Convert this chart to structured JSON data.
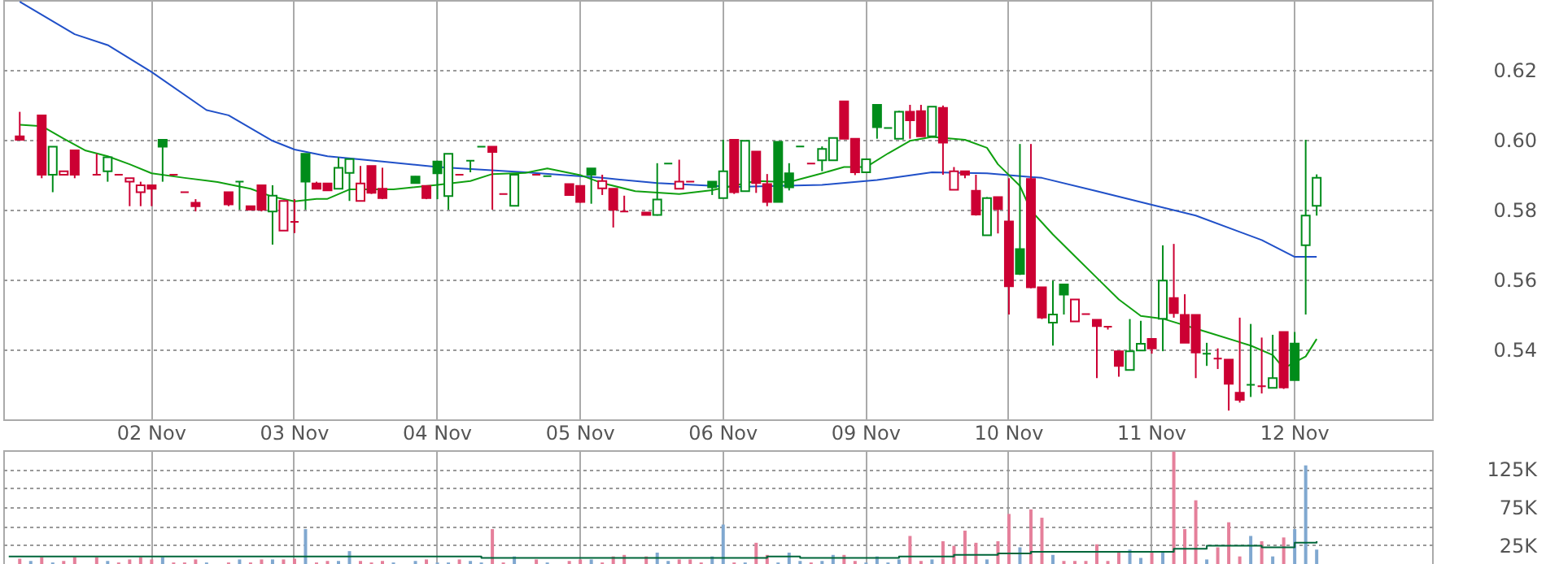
{
  "chart_data": [
    {
      "type": "candlestick",
      "categories": [
        null,
        null,
        null,
        null,
        null,
        null,
        null,
        null,
        null,
        null,
        null,
        null,
        null,
        "02 Nov",
        null,
        null,
        null,
        null,
        null,
        null,
        null,
        null,
        null,
        null,
        null,
        null,
        "03 Nov",
        null,
        null,
        null,
        null,
        null,
        null,
        null,
        null,
        null,
        null,
        null,
        null,
        "04 Nov",
        null,
        null,
        null,
        null,
        null,
        null,
        null,
        null,
        null,
        null,
        null,
        null,
        "05 Nov",
        null,
        null,
        null,
        null,
        null,
        null,
        null,
        null,
        null,
        null,
        null,
        null,
        "06 Nov",
        null,
        null,
        null,
        null,
        null,
        null,
        null,
        null,
        null,
        null,
        null,
        null,
        "09 Nov",
        null,
        null,
        null,
        null,
        null,
        null,
        null,
        null,
        null,
        null,
        null,
        null,
        "10 Nov",
        null,
        null,
        null,
        null,
        null,
        null,
        null,
        null,
        null,
        null,
        null,
        null,
        "11 Nov",
        null,
        null,
        null,
        null,
        null,
        null,
        null,
        null,
        null,
        null,
        null,
        null,
        "12 Nov",
        null,
        null,
        null,
        null,
        null,
        null,
        null,
        null,
        null,
        null,
        null,
        null
      ],
      "ohlc": [
        null,
        [
          0.601,
          0.608,
          0.6,
          0.6
        ],
        null,
        [
          0.607,
          0.607,
          0.589,
          0.59
        ],
        [
          0.59,
          0.598,
          0.585,
          0.598
        ],
        [
          0.59,
          0.591,
          0.59,
          0.591
        ],
        [
          0.597,
          0.597,
          0.589,
          0.59
        ],
        null,
        [
          0.59,
          0.596,
          0.59,
          0.59
        ],
        [
          0.591,
          0.595,
          0.588,
          0.595
        ],
        [
          0.59,
          0.59,
          0.59,
          0.59
        ],
        [
          0.588,
          0.589,
          0.581,
          0.589
        ],
        [
          0.585,
          0.588,
          0.581,
          0.587
        ],
        [
          0.587,
          0.587,
          0.581,
          0.586
        ],
        [
          0.6,
          0.6,
          0.588,
          0.598
        ],
        [
          0.59,
          0.59,
          0.59,
          0.59
        ],
        [
          0.585,
          0.585,
          0.585,
          0.585
        ],
        [
          0.582,
          0.583,
          0.5795,
          0.581
        ],
        null,
        null,
        [
          0.585,
          0.585,
          0.581,
          0.5815
        ],
        [
          0.588,
          0.588,
          0.58,
          0.588
        ],
        [
          0.581,
          0.581,
          0.58,
          0.58
        ],
        [
          0.587,
          0.587,
          0.5795,
          0.58
        ],
        [
          0.5795,
          0.587,
          0.57,
          0.584
        ],
        [
          0.574,
          0.5825,
          0.574,
          0.5825
        ],
        [
          0.5765,
          0.583,
          0.5733,
          0.5765
        ],
        [
          0.596,
          0.596,
          0.58,
          0.588
        ],
        [
          0.5875,
          0.588,
          0.586,
          0.586
        ],
        [
          0.5875,
          0.5875,
          0.5855,
          0.5855
        ],
        [
          0.586,
          0.595,
          0.586,
          0.592
        ],
        [
          0.5905,
          0.5945,
          0.5825,
          0.5945
        ],
        [
          0.5825,
          0.5925,
          0.5825,
          0.5875
        ],
        [
          0.5925,
          0.5925,
          0.5845,
          0.5848
        ],
        [
          0.586,
          0.592,
          0.583,
          0.5833
        ],
        null,
        null,
        [
          0.5895,
          0.5896,
          0.5875,
          0.5876
        ],
        [
          0.5868,
          0.5868,
          0.583,
          0.5833
        ],
        [
          0.5938,
          0.594,
          0.583,
          0.5904
        ],
        [
          0.5839,
          0.596,
          0.58,
          0.596
        ],
        [
          0.59,
          0.59,
          0.59,
          0.59
        ],
        [
          0.594,
          0.594,
          0.5907,
          0.594
        ],
        [
          0.598,
          0.598,
          0.598,
          0.598
        ],
        [
          0.598,
          0.598,
          0.58,
          0.5965
        ],
        [
          0.5845,
          0.5845,
          0.5845,
          0.5845
        ],
        [
          0.5811,
          0.59,
          0.5811,
          0.59
        ],
        null,
        [
          0.59,
          0.59,
          0.59,
          0.59
        ],
        [
          0.5896,
          0.5896,
          0.5896,
          0.5896
        ],
        null,
        [
          0.5873,
          0.5873,
          0.5842,
          0.5842
        ],
        [
          0.5868,
          0.5868,
          0.582,
          0.5822
        ],
        [
          0.5918,
          0.5918,
          0.5817,
          0.59
        ],
        [
          0.5861,
          0.59,
          0.5842,
          0.5882
        ],
        [
          0.586,
          0.586,
          0.5749,
          0.58
        ],
        [
          0.5795,
          0.584,
          0.5795,
          0.5795
        ],
        null,
        [
          0.5792,
          0.5792,
          0.5785,
          0.5785
        ],
        [
          0.5785,
          0.5933,
          0.5783,
          0.5829
        ],
        [
          0.5932,
          0.5932,
          0.5932,
          0.5932
        ],
        [
          0.586,
          0.5943,
          0.586,
          0.588
        ],
        [
          0.588,
          0.588,
          0.588,
          0.588
        ],
        null,
        [
          0.588,
          0.588,
          0.5842,
          0.5864
        ],
        [
          0.5833,
          0.6,
          0.5833,
          0.591
        ],
        [
          0.6,
          0.6,
          0.5845,
          0.585
        ],
        [
          0.5853,
          0.5997,
          0.5853,
          0.5997
        ],
        [
          0.5966,
          0.5966,
          0.5848,
          0.5876
        ],
        [
          0.5873,
          0.5902,
          0.581,
          0.5822
        ],
        [
          0.5994,
          0.5994,
          0.5822,
          0.5822
        ],
        [
          0.5904,
          0.5933,
          0.5855,
          0.5864
        ],
        [
          0.5981,
          0.5981,
          0.5981,
          0.5981
        ],
        [
          0.5932,
          0.5932,
          0.5932,
          0.5932
        ],
        [
          0.5941,
          0.5981,
          0.591,
          0.5974
        ],
        [
          0.5941,
          0.6005,
          0.5941,
          0.6005
        ],
        [
          0.611,
          0.611,
          0.6003,
          0.6003
        ],
        [
          0.6003,
          0.6003,
          0.5899,
          0.5907
        ],
        [
          0.5907,
          0.5944,
          0.5907,
          0.5944
        ],
        [
          0.61,
          0.61,
          0.6003,
          0.6036
        ],
        [
          0.6034,
          0.6034,
          0.6034,
          0.6034
        ],
        [
          0.6003,
          0.6083,
          0.6003,
          0.608
        ],
        [
          0.608,
          0.61,
          0.6003,
          0.6056
        ],
        [
          0.6082,
          0.61,
          0.601,
          0.601
        ],
        [
          0.601,
          0.6095,
          0.601,
          0.6095
        ],
        [
          0.6091,
          0.6098,
          0.59,
          0.5992
        ],
        [
          0.5857,
          0.5922,
          0.5857,
          0.591
        ],
        [
          0.591,
          0.591,
          0.589,
          0.59
        ],
        [
          0.5854,
          0.59,
          0.5783,
          0.5786
        ],
        [
          0.5727,
          0.5836,
          0.5727,
          0.5833
        ],
        [
          0.5836,
          0.5836,
          0.5732,
          0.5802
        ],
        [
          0.5766,
          0.589,
          0.55,
          0.5581
        ],
        [
          0.5687,
          0.5988,
          0.5613,
          0.5616
        ],
        [
          0.5888,
          0.5988,
          0.5575,
          0.5578
        ],
        [
          0.5578,
          0.5578,
          0.5487,
          0.5491
        ],
        [
          0.5477,
          0.5597,
          0.5411,
          0.55
        ],
        [
          0.5586,
          0.5586,
          0.55,
          0.5557
        ],
        [
          0.548,
          0.5543,
          0.548,
          0.5543
        ],
        [
          0.5501,
          0.5501,
          0.5501,
          0.5501
        ],
        [
          0.5485,
          0.5485,
          0.5318,
          0.5467
        ],
        [
          0.5465,
          0.5465,
          0.5457,
          0.5465
        ],
        [
          0.5395,
          0.5395,
          0.5322,
          0.5353
        ],
        [
          0.5341,
          0.5487,
          0.5341,
          0.5395
        ],
        [
          0.5397,
          0.5482,
          0.5397,
          0.5416
        ],
        [
          0.543,
          0.543,
          0.5388,
          0.5403
        ],
        [
          0.5488,
          0.5698,
          0.5395,
          0.5597
        ],
        [
          0.5547,
          0.5702,
          0.5491,
          0.5504
        ],
        [
          0.5499,
          0.5558,
          0.5419,
          0.5419
        ],
        [
          0.5499,
          0.5499,
          0.5318,
          0.5391
        ],
        [
          0.5388,
          0.5419,
          0.5353,
          0.5388
        ],
        [
          0.5374,
          0.5403,
          0.5344,
          0.5374
        ],
        [
          0.5371,
          0.5371,
          0.5225,
          0.5302
        ],
        [
          0.5276,
          0.5491,
          0.5248,
          0.5256
        ],
        [
          0.5299,
          0.5473,
          0.5264,
          0.5299
        ],
        [
          0.5295,
          0.5434,
          0.5274,
          0.5295
        ],
        [
          0.529,
          0.5442,
          0.529,
          0.5318
        ],
        [
          0.545,
          0.545,
          0.5287,
          0.5291
        ],
        [
          0.5417,
          0.545,
          0.5312,
          0.5312
        ],
        [
          0.5698,
          0.6,
          0.55,
          0.5783
        ],
        [
          0.5811,
          0.5901,
          0.5783,
          0.5891
        ],
        null,
        null,
        null,
        null,
        null,
        null,
        null,
        null,
        null,
        null
      ],
      "colors": [
        null,
        "#cc0033",
        null,
        "#cc0033",
        "#008c1a",
        "#cc0033",
        "#cc0033",
        null,
        "#cc0033",
        "#008c1a",
        "#cc0033",
        "#cc0033",
        "#cc0033",
        "#cc0033",
        "#008c1a",
        "#cc0033",
        "#cc0033",
        "#cc0033",
        null,
        null,
        "#cc0033",
        "#008c1a",
        "#cc0033",
        "#cc0033",
        "#008c1a",
        "#cc0033",
        "#cc0033",
        "#008c1a",
        "#cc0033",
        "#cc0033",
        "#008c1a",
        "#008c1a",
        "#cc0033",
        "#cc0033",
        "#cc0033",
        null,
        null,
        "#008c1a",
        "#cc0033",
        "#008c1a",
        "#008c1a",
        "#cc0033",
        "#008c1a",
        "#008c1a",
        "#cc0033",
        "#cc0033",
        "#008c1a",
        null,
        "#cc0033",
        "#008c1a",
        null,
        "#cc0033",
        "#cc0033",
        "#008c1a",
        "#cc0033",
        "#cc0033",
        "#cc0033",
        null,
        "#cc0033",
        "#008c1a",
        "#008c1a",
        "#cc0033",
        "#cc0033",
        null,
        "#008c1a",
        "#008c1a",
        "#cc0033",
        "#008c1a",
        "#cc0033",
        "#cc0033",
        "#008c1a",
        "#008c1a",
        "#008c1a",
        "#cc0033",
        "#008c1a",
        "#008c1a",
        "#cc0033",
        "#cc0033",
        "#008c1a",
        "#008c1a",
        "#008c1a",
        "#008c1a",
        "#cc0033",
        "#cc0033",
        "#008c1a",
        "#cc0033",
        "#cc0033",
        "#cc0033",
        "#cc0033",
        "#008c1a",
        "#cc0033",
        "#cc0033",
        "#008c1a",
        "#cc0033",
        "#cc0033",
        "#008c1a",
        "#008c1a",
        "#cc0033",
        "#cc0033",
        "#cc0033",
        "#cc0033",
        "#cc0033",
        "#008c1a",
        "#008c1a",
        "#cc0033",
        "#008c1a",
        "#cc0033",
        "#cc0033",
        "#cc0033",
        "#008c1a",
        "#cc0033",
        "#cc0033",
        "#cc0033",
        "#008c1a",
        "#cc0033",
        "#008c1a",
        "#cc0033",
        "#008c1a",
        "#008c1a",
        "#008c1a",
        null,
        null,
        null,
        null,
        null,
        null,
        null,
        null,
        null,
        null
      ],
      "series": [
        {
          "type": "line",
          "color": "#2050c8",
          "values": [
            null,
            0.6395,
            null,
            null,
            null,
            null,
            0.6302,
            null,
            null,
            0.6271,
            null,
            null,
            null,
            0.6194,
            null,
            null,
            null,
            null,
            0.6085,
            null,
            0.607,
            null,
            null,
            null,
            0.5997,
            null,
            0.5972,
            null,
            null,
            0.5953,
            null,
            null,
            null,
            null,
            0.5938,
            null,
            null,
            null,
            null,
            0.5922,
            null,
            null,
            null,
            null,
            null,
            null,
            null,
            0.5907,
            null,
            null,
            null,
            null,
            null,
            null,
            0.5891,
            null,
            null,
            null,
            null,
            0.5876,
            null,
            null,
            null,
            null,
            null,
            null,
            0.5865,
            null,
            null,
            null,
            null,
            null,
            null,
            null,
            0.5871,
            null,
            null,
            null,
            null,
            0.5885,
            null,
            null,
            null,
            null,
            0.5907,
            null,
            null,
            null,
            null,
            0.5904,
            null,
            null,
            null,
            null,
            0.5891,
            null,
            null,
            null,
            null,
            0.5853,
            null,
            null,
            null,
            null,
            0.5814,
            null,
            null,
            null,
            0.5783,
            null,
            null,
            null,
            null,
            null,
            0.5713,
            null,
            null,
            0.5665,
            null,
            0.5665,
            null,
            null,
            null,
            null,
            null,
            null,
            null,
            null,
            null,
            null
          ]
        },
        {
          "type": "line",
          "color": "#10a010",
          "values": [
            null,
            0.6043,
            null,
            0.6039,
            null,
            0.6003,
            null,
            0.5969,
            null,
            0.5953,
            null,
            0.593,
            null,
            0.5904,
            null,
            null,
            0.5891,
            null,
            null,
            0.5879,
            null,
            null,
            0.586,
            null,
            0.5837,
            null,
            0.5824,
            null,
            0.5831,
            0.5831,
            null,
            0.5858,
            null,
            null,
            null,
            0.5858,
            null,
            null,
            null,
            0.5871,
            null,
            null,
            0.5882,
            null,
            0.5902,
            null,
            null,
            0.5905,
            null,
            0.5918,
            null,
            null,
            0.5899,
            null,
            0.5876,
            null,
            null,
            0.5853,
            null,
            null,
            null,
            0.5845,
            null,
            null,
            0.5856,
            null,
            null,
            null,
            0.5882,
            null,
            null,
            0.5879,
            null,
            null,
            0.5904,
            null,
            0.5922,
            null,
            0.5922,
            null,
            0.5961,
            null,
            0.5997,
            null,
            0.6008,
            null,
            null,
            0.6,
            null,
            0.5977,
            0.593,
            null,
            0.5868,
            0.5798,
            null,
            0.5729,
            null,
            0.5667,
            null,
            0.5605,
            null,
            0.5543,
            null,
            0.5496,
            null,
            0.5488,
            null,
            null,
            null,
            0.545,
            null,
            null,
            null,
            0.5411,
            null,
            0.5384,
            0.5346,
            null,
            0.538,
            0.543,
            null,
            null,
            null,
            null,
            null,
            null,
            null,
            null,
            null,
            null
          ]
        }
      ],
      "ylim": [
        0.52,
        0.64
      ],
      "yticks": [
        0.54,
        0.56,
        0.58,
        {
          "value": 0.6,
          "label": "0.60"
        },
        0.62
      ],
      "grid": true
    },
    {
      "type": "bar",
      "categories": [
        null,
        null,
        null,
        null,
        null,
        null,
        null,
        null,
        null,
        null,
        null,
        null,
        null,
        null,
        null,
        null,
        null,
        null,
        null,
        null,
        null,
        null,
        null,
        null,
        null,
        null,
        null,
        null,
        null,
        null,
        null,
        null,
        null,
        null,
        null,
        null,
        null,
        null,
        null,
        null,
        null,
        null,
        null,
        null,
        null,
        null,
        null,
        null,
        null,
        null,
        null,
        null,
        null,
        null,
        null,
        null,
        null,
        null,
        null,
        null,
        null,
        null,
        null,
        null,
        null,
        null,
        null,
        null,
        null,
        null,
        null,
        null,
        null,
        null,
        null,
        null,
        null,
        null,
        null,
        null,
        null,
        null,
        null,
        null,
        null,
        null,
        null,
        null,
        null,
        null,
        null,
        null,
        null,
        null,
        null,
        null,
        null,
        null,
        null,
        null,
        null,
        null,
        null,
        null,
        null,
        null,
        null,
        null,
        null,
        null,
        null,
        null,
        null,
        null,
        null,
        null,
        null,
        null,
        null,
        null,
        null,
        null,
        null,
        null,
        null,
        null,
        null,
        null,
        null,
        null
      ],
      "series": [
        {
          "type": "bar",
          "values": [
            null,
            7000,
            4000,
            9000,
            2000,
            4000,
            9000,
            null,
            9000,
            4000,
            2000,
            6000,
            9000,
            6000,
            9000,
            2000,
            2000,
            6000,
            2000,
            null,
            2000,
            6000,
            2000,
            6000,
            6000,
            6000,
            7000,
            46000,
            2000,
            4000,
            4000,
            17000,
            4000,
            2000,
            4000,
            2000,
            null,
            4000,
            6000,
            2000,
            2000,
            6000,
            4000,
            2000,
            46000,
            2000,
            10000,
            null,
            6000,
            2000,
            null,
            4000,
            6000,
            6000,
            2000,
            10000,
            12000,
            null,
            10000,
            15000,
            4000,
            6000,
            6000,
            2000,
            10000,
            52000,
            2000,
            2000,
            28000,
            12000,
            2000,
            15000,
            4000,
            2000,
            4000,
            12000,
            12000,
            4000,
            2000,
            10000,
            2000,
            6000,
            37000,
            4000,
            6000,
            30000,
            24000,
            44000,
            28000,
            6000,
            30000,
            66000,
            22000,
            72000,
            61000,
            12000,
            4000,
            4000,
            4000,
            26000,
            4000,
            15000,
            19000,
            8000,
            15000,
            17000,
            148000,
            46000,
            84000,
            6000,
            22000,
            55000,
            10000,
            37000,
            30000,
            10000,
            35000,
            46000,
            130000,
            19000,
            null,
            null,
            null,
            null,
            null,
            null,
            null,
            null,
            null,
            null
          ],
          "colors": [
            null,
            "#e5809b",
            "#80a8d0",
            "#e5809b",
            "#80a8d0",
            "#e5809b",
            "#e5809b",
            null,
            "#e5809b",
            "#80a8d0",
            "#e5809b",
            "#e5809b",
            "#e5809b",
            "#e5809b",
            "#80a8d0",
            "#e5809b",
            "#e5809b",
            "#e5809b",
            "#80a8d0",
            null,
            "#e5809b",
            "#80a8d0",
            "#e5809b",
            "#e5809b",
            "#80a8d0",
            "#e5809b",
            "#e5809b",
            "#80a8d0",
            "#e5809b",
            "#e5809b",
            "#80a8d0",
            "#80a8d0",
            "#e5809b",
            "#e5809b",
            "#e5809b",
            "#80a8d0",
            null,
            "#80a8d0",
            "#e5809b",
            "#80a8d0",
            "#80a8d0",
            "#e5809b",
            "#80a8d0",
            "#80a8d0",
            "#e5809b",
            "#e5809b",
            "#80a8d0",
            null,
            "#e5809b",
            "#80a8d0",
            null,
            "#e5809b",
            "#e5809b",
            "#80a8d0",
            "#e5809b",
            "#e5809b",
            "#e5809b",
            null,
            "#e5809b",
            "#80a8d0",
            "#80a8d0",
            "#e5809b",
            "#e5809b",
            "#e5809b",
            "#80a8d0",
            "#80a8d0",
            "#e5809b",
            "#80a8d0",
            "#e5809b",
            "#e5809b",
            "#80a8d0",
            "#80a8d0",
            "#80a8d0",
            "#e5809b",
            "#80a8d0",
            "#80a8d0",
            "#e5809b",
            "#e5809b",
            "#80a8d0",
            "#80a8d0",
            "#80a8d0",
            "#80a8d0",
            "#e5809b",
            "#e5809b",
            "#80a8d0",
            "#e5809b",
            "#e5809b",
            "#e5809b",
            "#e5809b",
            "#80a8d0",
            "#e5809b",
            "#e5809b",
            "#80a8d0",
            "#e5809b",
            "#e5809b",
            "#80a8d0",
            "#e5809b",
            "#e5809b",
            "#e5809b",
            "#e5809b",
            "#e5809b",
            "#e5809b",
            "#80a8d0",
            "#80a8d0",
            "#e5809b",
            "#80a8d0",
            "#e5809b",
            "#e5809b",
            "#e5809b",
            "#80a8d0",
            "#e5809b",
            "#e5809b",
            "#e5809b",
            "#80a8d0",
            "#e5809b",
            "#80a8d0",
            "#e5809b",
            "#80a8d0",
            "#80a8d0",
            "#80a8d0",
            null,
            null,
            null,
            null,
            null,
            null,
            null,
            null,
            null,
            null
          ]
        },
        {
          "type": "step",
          "color": "#00663a",
          "values": [
            10000,
            null,
            null,
            null,
            null,
            null,
            null,
            null,
            null,
            null,
            null,
            null,
            null,
            null,
            null,
            10000,
            null,
            null,
            null,
            null,
            null,
            null,
            null,
            null,
            null,
            null,
            10000,
            null,
            null,
            null,
            null,
            null,
            null,
            null,
            null,
            null,
            null,
            null,
            null,
            null,
            null,
            null,
            null,
            8000,
            8000,
            null,
            null,
            null,
            null,
            null,
            null,
            null,
            null,
            null,
            null,
            null,
            null,
            null,
            null,
            null,
            null,
            null,
            null,
            null,
            null,
            8000,
            null,
            null,
            null,
            10000,
            null,
            null,
            8000,
            null,
            null,
            null,
            null,
            null,
            null,
            null,
            null,
            10000,
            null,
            null,
            null,
            null,
            12000,
            null,
            null,
            null,
            14000,
            null,
            null,
            16000,
            null,
            null,
            null,
            null,
            null,
            null,
            null,
            null,
            null,
            null,
            16000,
            null,
            20000,
            null,
            null,
            24000,
            null,
            null,
            null,
            null,
            22000,
            null,
            null,
            28000,
            null,
            30000,
            null,
            null,
            null,
            null,
            null,
            null,
            null,
            null,
            null,
            null
          ]
        }
      ],
      "ylim": [
        0,
        150000
      ],
      "yticks": [
        {
          "value": 25000,
          "label": "25K"
        },
        {
          "value": 50000,
          "label": null
        },
        {
          "value": 75000,
          "label": "75K"
        },
        {
          "value": 100000,
          "label": null
        },
        {
          "value": 125000,
          "label": "125K"
        }
      ],
      "grid": true
    }
  ]
}
